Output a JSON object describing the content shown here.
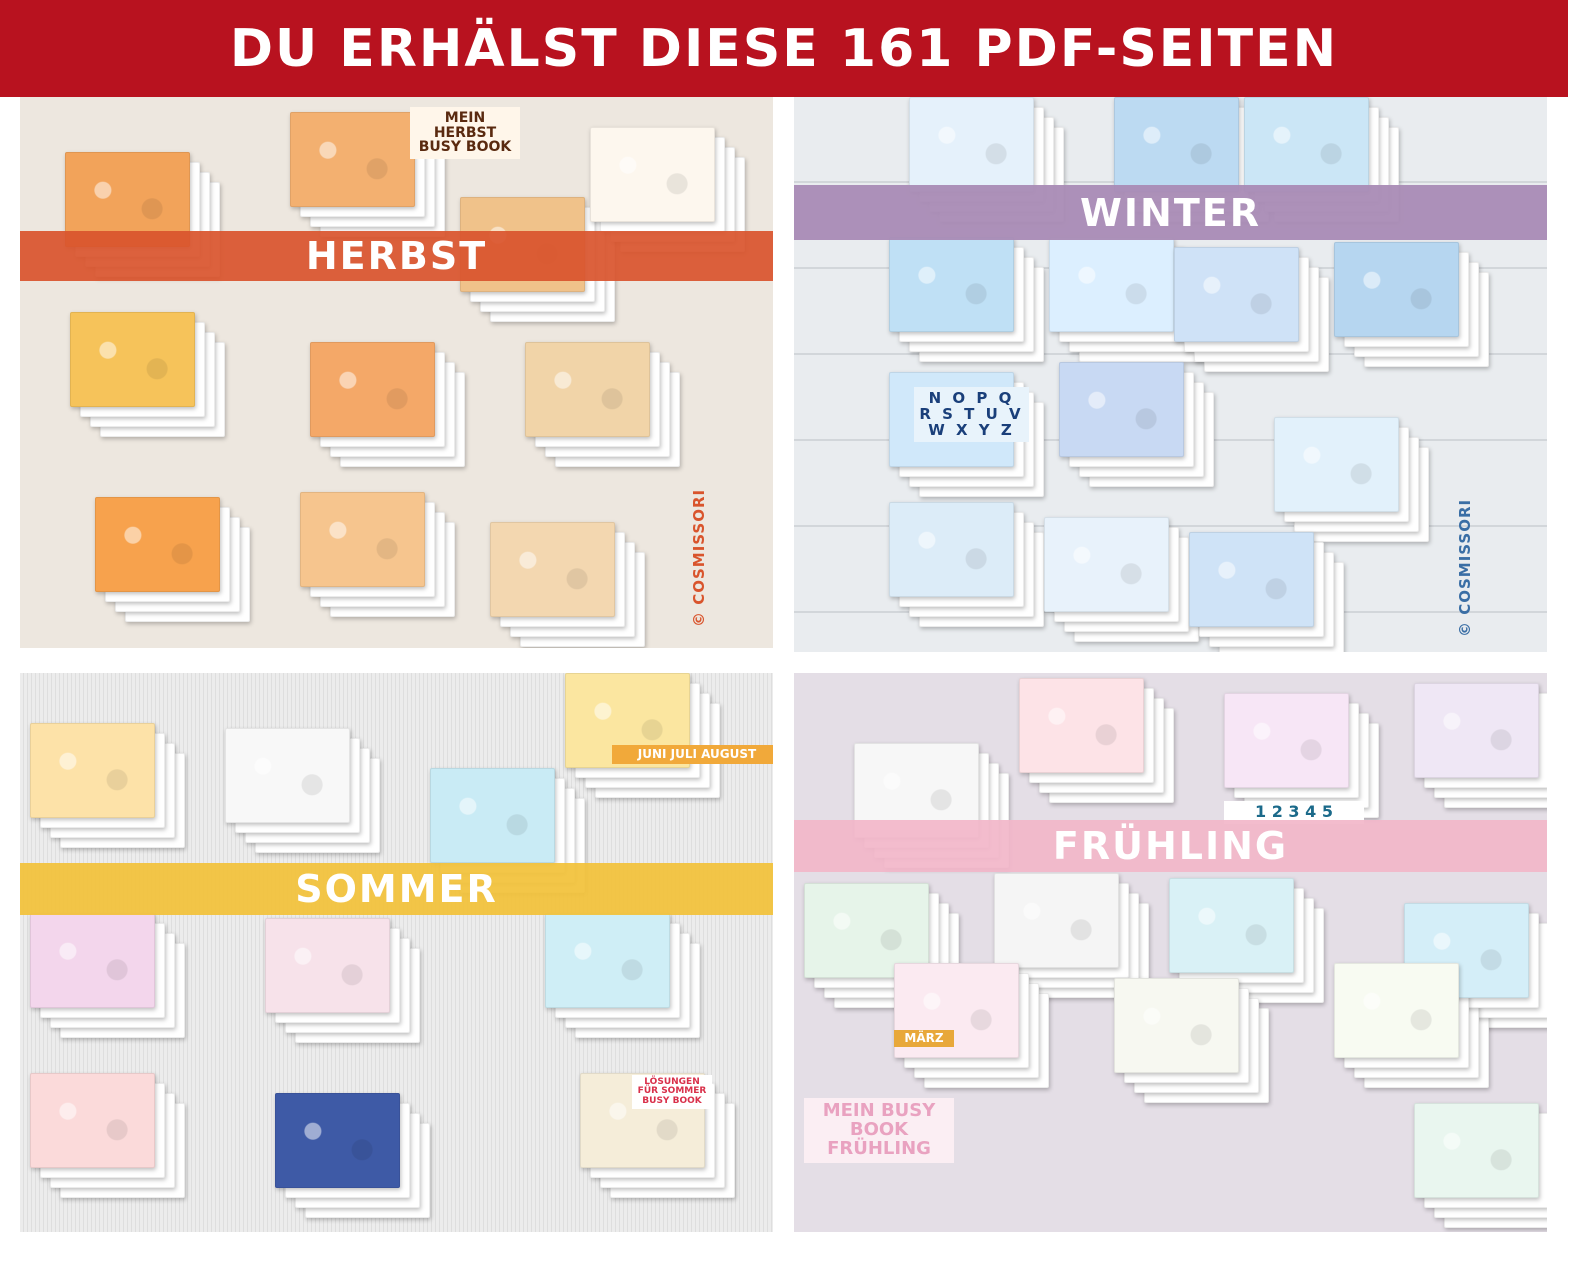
{
  "header": {
    "title": "DU ERHÄLST DIESE 161 PDF-SEITEN",
    "color": "#b8121f"
  },
  "quadrants": {
    "herbst": {
      "label": "HERBST",
      "banner_color": "#d9542c",
      "watermark": "© COSMISSORI",
      "cover_title": "MEIN HERBST BUSY BOOK"
    },
    "winter": {
      "label": "WINTER",
      "banner_color": "#a98bb5",
      "watermark": "© COSMISSORI",
      "letters": "N O P Q R S T U V W X Y Z"
    },
    "sommer": {
      "label": "SOMMER",
      "banner_color": "#f2c23a",
      "months": "JUNI  JULI  AUGUST",
      "solutions_title": "LÖSUNGEN FÜR SOMMER BUSY BOOK"
    },
    "fruehling": {
      "label": "FRÜHLING",
      "banner_color": "#f2b6c9",
      "cover_title": "MEIN BUSY BOOK FRÜHLING",
      "month": "MÄRZ",
      "numbers": "1 2 3 4 5"
    }
  }
}
